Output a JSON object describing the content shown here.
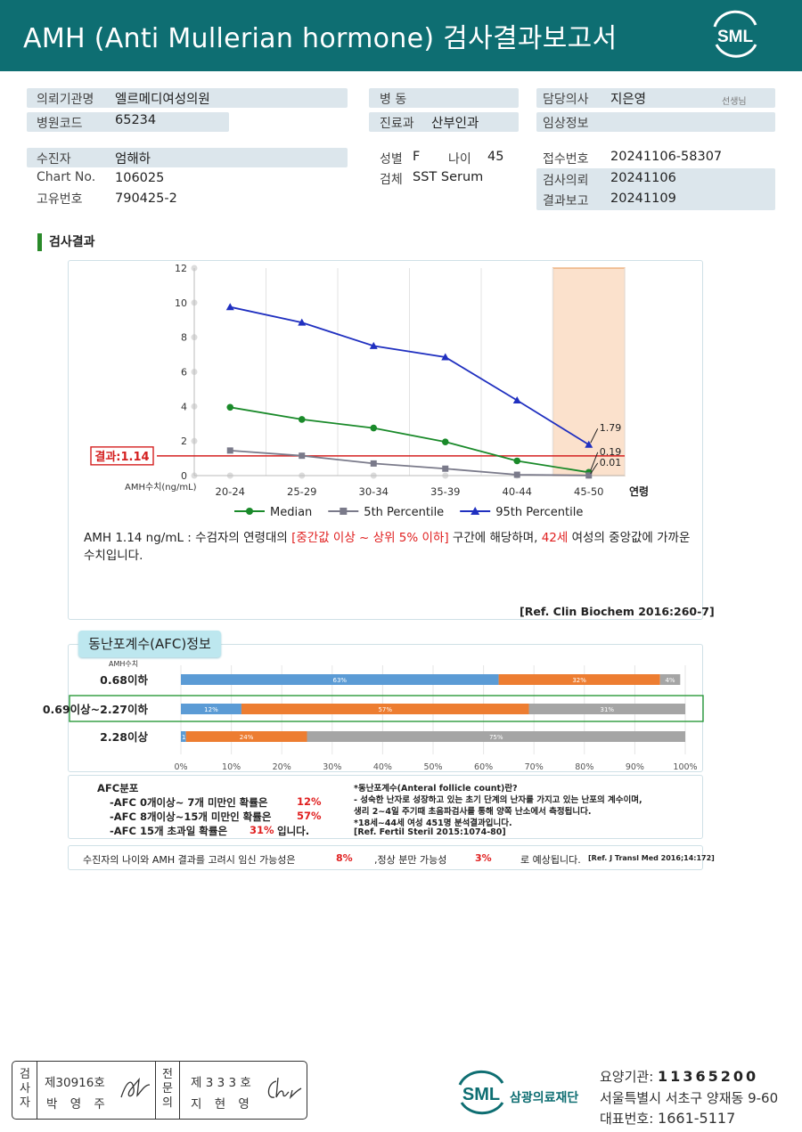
{
  "header": {
    "title": "AMH (Anti Mullerian hormone) 검사결과보고서",
    "logo_text": "SML"
  },
  "info": {
    "institution_label": "의뢰기관명",
    "institution": "엘르메디여성의원",
    "hospital_code_label": "병원코드",
    "hospital_code": "65234",
    "ward_label": "병 동",
    "ward": "",
    "dept_label": "진료과",
    "dept": "산부인과",
    "doctor_label": "담당의사",
    "doctor": "지은영",
    "doctor_suffix": "선생님",
    "clinical_label": "임상정보",
    "clinical": "",
    "patient_label": "수진자",
    "patient": "엄해하",
    "chart_no_label": "Chart No.",
    "chart_no": "106025",
    "unique_label": "고유번호",
    "unique": "790425-2",
    "sex_label": "성별",
    "sex": "F",
    "age_label": "나이",
    "age": "45",
    "specimen_label": "검체",
    "specimen": "SST Serum",
    "reception_label": "접수번호",
    "reception": "20241106-58307",
    "request_label": "검사의뢰",
    "request": "20241106",
    "report_label": "결과보고",
    "report": "20241109"
  },
  "section_title": "검사결과",
  "chart_data": {
    "type": "line",
    "categories": [
      "20-24",
      "25-29",
      "30-34",
      "35-39",
      "40-44",
      "45-50"
    ],
    "x_suffix": "연령",
    "ylabel": "AMH수치(ng/mL)",
    "ylim": [
      0,
      12
    ],
    "yticks": [
      0,
      2,
      4,
      6,
      8,
      10,
      12
    ],
    "series": [
      {
        "name": "Median",
        "color": "#1a8a2a",
        "marker": "circle",
        "values": [
          3.95,
          3.25,
          2.75,
          1.95,
          0.85,
          0.19
        ]
      },
      {
        "name": "5th Percentile",
        "color": "#7a7a8a",
        "marker": "square",
        "values": [
          1.45,
          1.15,
          0.7,
          0.4,
          0.05,
          0.01
        ]
      },
      {
        "name": "95th Percentile",
        "color": "#2030c0",
        "marker": "triangle",
        "values": [
          9.75,
          8.85,
          7.5,
          6.85,
          4.35,
          1.79
        ]
      }
    ],
    "point_labels": [
      "1.79",
      "0.19",
      "0.01"
    ],
    "highlight_category": "45-50",
    "result_value": 1.14,
    "result_label": "결과:1.14",
    "grid": "vertical"
  },
  "interpretation": {
    "pre": "AMH  1.14 ng/mL : 수검자의 연령대의 ",
    "highlight1": "[중간값 이상 ~ 상위 5% 이하]",
    "mid": " 구간에 해당하며, ",
    "highlight2": "42세",
    "post": " 여성의 중앙값에 가까운 수치입니다.",
    "ref": "[Ref. Clin Biochem 2016:260-7]"
  },
  "afc": {
    "tag": "동난포계수(AFC)정보",
    "amh_label": "AMH수치",
    "rows": [
      {
        "label": "0.68이하",
        "segments": [
          {
            "value": 63,
            "text": "63%"
          },
          {
            "value": 32,
            "text": "32%"
          },
          {
            "value": 4,
            "text": "4%"
          }
        ]
      },
      {
        "label": "0.69이상~2.27이하",
        "segments": [
          {
            "value": 12,
            "text": "12%"
          },
          {
            "value": 57,
            "text": "57%"
          },
          {
            "value": 31,
            "text": "31%"
          }
        ]
      },
      {
        "label": "2.28이상",
        "segments": [
          {
            "value": 1,
            "text": "1%"
          },
          {
            "value": 24,
            "text": "24%"
          },
          {
            "value": 75,
            "text": "75%"
          }
        ]
      }
    ],
    "segment_colors": [
      "#5b9bd5",
      "#ed7d31",
      "#a5a5a5"
    ],
    "highlight_row": 1,
    "highlight_color": "#2a9a3a",
    "axis_ticks": [
      "0%",
      "10%",
      "20%",
      "30%",
      "40%",
      "50%",
      "60%",
      "70%",
      "80%",
      "90%",
      "100%"
    ],
    "dist_title": "AFC분포",
    "lines": [
      {
        "text": "-AFC  0개이상~ 7개 미만인 확률은",
        "pct": "12%",
        "suffix": ""
      },
      {
        "text": "-AFC  8개이상~15개 미만인 확률은",
        "pct": "57%",
        "suffix": ""
      },
      {
        "text": "-AFC  15개 초과일 확률은",
        "pct": "31%",
        "suffix": "입니다."
      }
    ],
    "notes": [
      "*동난포계수(Anteral follicle count)란?",
      "- 성숙한 난자로 성장하고 있는 초기 단계의 난자를 가지고 있는 난포의 계수이며,",
      "   생리 2~4일 주기때 초음파검사를 통해 양쪽 난소에서 측정됩니다.",
      "*18세~44세 여성 451명 분석결과입니다.",
      "[Ref. Fertil Steril 2015:1074-80]"
    ]
  },
  "fertility": {
    "pre": "수진자의  나이와 AMH  결과를 고려시 임신 가능성은",
    "pct1": "8%",
    "mid": ",정상 분만 가능성",
    "pct2": "3%",
    "post": "로  예상됩니다.",
    "ref": "[Ref. J Transl Med 2016;14:172]"
  },
  "signature": {
    "col1_label": [
      "검",
      "사",
      "자"
    ],
    "col1_no": "제30916호",
    "col1_name": "박 영 주",
    "col2_label": [
      "전",
      "문",
      "의"
    ],
    "col2_no": "제 3 3 3 호",
    "col2_name": "지 현 영"
  },
  "org": {
    "logo_text": "SML",
    "name": "삼광의료재단",
    "code_label": "요양기관:",
    "code": "11365200",
    "address": "서울특별시 서초구 양재동 9-60",
    "phone_label": "대표번호:",
    "phone": "1661-5117"
  }
}
